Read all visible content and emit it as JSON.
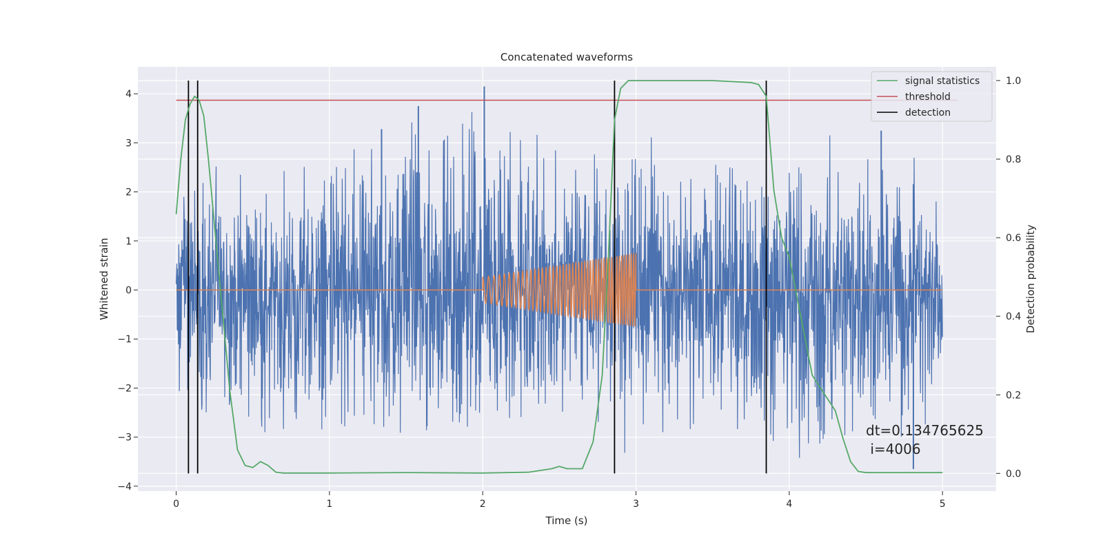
{
  "chart_data": {
    "type": "line",
    "title": "Concatenated waveforms",
    "xlabel": "Time (s)",
    "ylabel": "Whitened strain",
    "y2label": "Detection probability",
    "xlim": [
      -0.25,
      5.35
    ],
    "ylim": [
      -4.1,
      4.55
    ],
    "y2lim": [
      -0.045,
      1.035
    ],
    "x_ticks": [
      0,
      1,
      2,
      3,
      4,
      5
    ],
    "y_ticks": [
      -4,
      -3,
      -2,
      -1,
      0,
      1,
      2,
      3,
      4
    ],
    "y2_ticks": [
      0.0,
      0.2,
      0.4,
      0.6,
      0.8,
      1.0
    ],
    "x_tick_labels": [
      "0",
      "1",
      "2",
      "3",
      "4",
      "5"
    ],
    "y_tick_labels": [
      "−4",
      "−3",
      "−2",
      "−1",
      "0",
      "1",
      "2",
      "3",
      "4"
    ],
    "y2_tick_labels": [
      "0.0",
      "0.2",
      "0.4",
      "0.6",
      "0.8",
      "1.0"
    ],
    "grid": true,
    "background": "#eaeaf2",
    "legend_placement": "top-right",
    "series": [
      {
        "name": "",
        "axis": "left",
        "color": "#4c72b0",
        "description": "whitened noise strain, 0 to 5 s",
        "envelope": {
          "x": [
            0,
            0.5,
            1,
            1.5,
            2,
            2.5,
            3,
            3.5,
            4,
            4.5,
            5
          ],
          "max": [
            2.1,
            2.6,
            2.5,
            3.8,
            4.15,
            2.8,
            2.8,
            2.7,
            2.9,
            3.2,
            2.2
          ],
          "min": [
            -2.7,
            -3.0,
            -2.9,
            -3.0,
            -2.8,
            -2.6,
            -2.9,
            -3.1,
            -3.2,
            -3.1,
            -2.9
          ]
        },
        "spikes": [
          {
            "x": 2.01,
            "y": 4.15
          },
          {
            "x": 1.58,
            "y": 3.75
          },
          {
            "x": 1.34,
            "y": 3.28
          },
          {
            "x": 4.6,
            "y": 3.25
          },
          {
            "x": 4.81,
            "y": -3.65
          }
        ]
      },
      {
        "name": "",
        "axis": "left",
        "color": "#dd8452",
        "description": "injected chirp waveform, 2.0 to 3.0 s",
        "chirp": {
          "start": 2.0,
          "end": 3.0,
          "amp_start": 0.26,
          "amp_end": 0.75,
          "cycles": 46
        }
      },
      {
        "name": "signal statistics",
        "axis": "right",
        "color": "#55a868",
        "x": [
          0,
          0.03,
          0.06,
          0.09,
          0.12,
          0.15,
          0.18,
          0.21,
          0.25,
          0.3,
          0.35,
          0.4,
          0.45,
          0.5,
          0.55,
          0.6,
          0.65,
          0.7,
          1.0,
          1.5,
          2.0,
          2.3,
          2.45,
          2.5,
          2.55,
          2.65,
          2.72,
          2.78,
          2.82,
          2.86,
          2.9,
          2.95,
          3.0,
          3.5,
          3.75,
          3.8,
          3.85,
          3.9,
          3.95,
          4.0,
          4.05,
          4.1,
          4.15,
          4.2,
          4.25,
          4.3,
          4.35,
          4.4,
          4.45,
          4.5,
          5.0
        ],
        "y": [
          0.66,
          0.8,
          0.9,
          0.94,
          0.96,
          0.95,
          0.91,
          0.8,
          0.63,
          0.42,
          0.21,
          0.06,
          0.02,
          0.015,
          0.03,
          0.02,
          0.003,
          0.001,
          0.001,
          0.002,
          0.001,
          0.003,
          0.012,
          0.018,
          0.012,
          0.012,
          0.08,
          0.25,
          0.55,
          0.9,
          0.98,
          1.0,
          1.0,
          1.0,
          0.995,
          0.99,
          0.96,
          0.72,
          0.6,
          0.55,
          0.45,
          0.35,
          0.25,
          0.22,
          0.19,
          0.16,
          0.09,
          0.03,
          0.005,
          0.002,
          0.002
        ]
      },
      {
        "name": "threshold",
        "axis": "right",
        "color": "#c44e52",
        "x": [
          0,
          5.1
        ],
        "y": [
          0.95,
          0.95
        ]
      },
      {
        "name": "detection",
        "axis": "right",
        "color": "#000000",
        "type": "vlines",
        "x": [
          0.08,
          0.14,
          2.86,
          3.85
        ],
        "y_range": [
          0.0,
          1.0
        ]
      }
    ],
    "annotation": {
      "line1": "dt=0.134765625",
      "line2": " i=4006"
    }
  }
}
